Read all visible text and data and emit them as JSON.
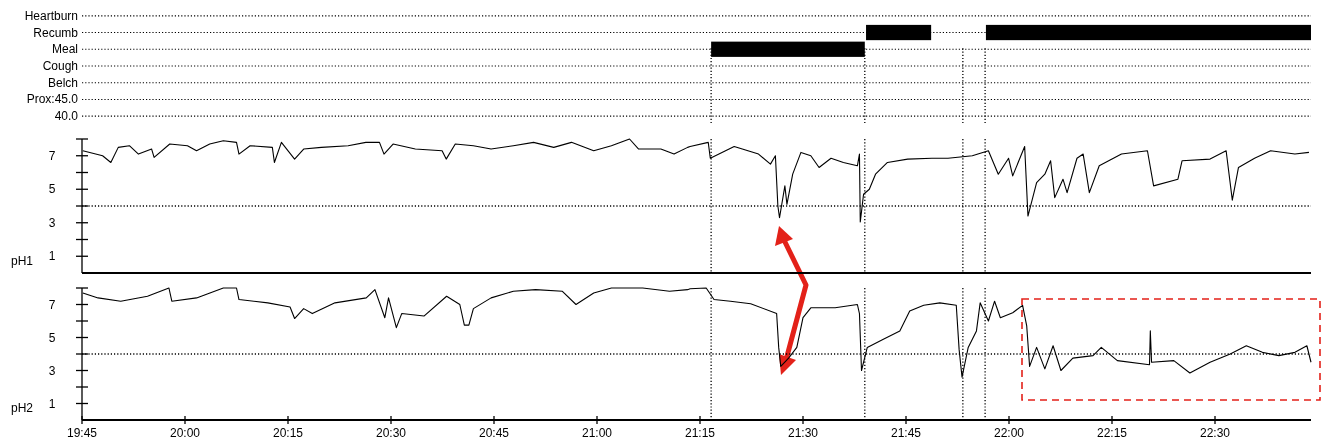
{
  "chart_data": [
    {
      "type": "bar",
      "orientation": "horizontal",
      "categories": [
        "Heartburn",
        "Recumb",
        "Meal",
        "Cough",
        "Belch",
        "Prox:45.0",
        "40.0"
      ],
      "xlim": [
        19.75,
        22.733
      ],
      "tick_labels": "y",
      "grid": "y",
      "series": [
        {
          "color": "#000000",
          "base": [
            null,
            21.653,
            21.277,
            null,
            null,
            null,
            null
          ],
          "values": [
            null,
            0.158,
            0.373,
            null,
            null,
            null,
            null
          ]
        },
        {
          "color": "#000000",
          "base": [
            null,
            21.944,
            null,
            null,
            null,
            null,
            null
          ],
          "values": [
            null,
            0.789,
            null,
            null,
            null,
            null,
            null
          ]
        }
      ],
      "ref_lines": [
        {
          "axis": "x",
          "value": 21.277,
          "line_style": "dotted"
        },
        {
          "axis": "x",
          "value": 21.65,
          "line_style": "dotted"
        },
        {
          "axis": "x",
          "value": 21.888,
          "line_style": "dotted"
        },
        {
          "axis": "x",
          "value": 21.942,
          "line_style": "dotted"
        }
      ]
    },
    {
      "type": "line",
      "ylabel": "pH1",
      "xlim": [
        19.75,
        22.733
      ],
      "ylim": [
        0,
        8
      ],
      "tick_labels": "y",
      "yticks": [
        {
          "value": 8,
          "label": null
        },
        7,
        {
          "value": 6,
          "label": null
        },
        5,
        {
          "value": 4,
          "label": null
        },
        3,
        {
          "value": 2,
          "label": null
        },
        1
      ],
      "series": [
        {
          "color": "#000000",
          "x": [
            19.752,
            19.8,
            19.82,
            19.838,
            19.865,
            19.887,
            19.919,
            19.925,
            19.963,
            20.006,
            20.028,
            20.06,
            20.093,
            20.125,
            20.131,
            20.158,
            20.212,
            20.217,
            20.234,
            20.266,
            20.288,
            20.331,
            20.396,
            20.439,
            20.472,
            20.483,
            20.505,
            20.559,
            20.624,
            20.634,
            20.656,
            20.7,
            20.743,
            20.797,
            20.846,
            20.895,
            20.938,
            20.992,
            21.035,
            21.079,
            21.101,
            21.155,
            21.187,
            21.22,
            21.226,
            21.27,
            21.275,
            21.333,
            21.392,
            21.421,
            21.433,
            21.439,
            21.443,
            21.456,
            21.461,
            21.475,
            21.495,
            21.519,
            21.539,
            21.568,
            21.598,
            21.632,
            21.637,
            21.639,
            21.647,
            21.661,
            21.676,
            21.705,
            21.754,
            21.813,
            21.852,
            21.911,
            21.95,
            21.974,
            21.999,
            22.009,
            22.038,
            22.046,
            22.067,
            22.087,
            22.101,
            22.111,
            22.131,
            22.141,
            22.165,
            22.18,
            22.195,
            22.219,
            22.273,
            22.336,
            22.351,
            22.41,
            22.42,
            22.488,
            22.527,
            22.542,
            22.557,
            22.596,
            22.635,
            22.694,
            22.728
          ],
          "values": [
            7.3,
            7.0,
            6.6,
            7.5,
            7.6,
            7.1,
            7.4,
            6.9,
            7.7,
            7.6,
            7.3,
            7.7,
            7.9,
            7.8,
            7.1,
            7.6,
            7.5,
            6.6,
            7.8,
            6.8,
            7.4,
            7.5,
            7.6,
            7.8,
            7.8,
            7.1,
            7.7,
            7.4,
            7.3,
            6.8,
            7.7,
            7.6,
            7.4,
            7.6,
            7.8,
            7.5,
            7.8,
            7.3,
            7.6,
            8.0,
            7.4,
            7.4,
            7.1,
            7.5,
            7.55,
            7.8,
            6.85,
            7.55,
            7.1,
            6.5,
            7.0,
            4.0,
            3.3,
            5.2,
            4.1,
            5.9,
            7.2,
            7.0,
            6.3,
            6.85,
            6.6,
            6.4,
            7.1,
            3.05,
            4.7,
            5.0,
            5.9,
            6.6,
            6.8,
            6.85,
            6.85,
            7.0,
            7.3,
            5.9,
            6.85,
            5.8,
            7.55,
            3.4,
            5.4,
            5.9,
            6.7,
            4.5,
            5.6,
            4.8,
            6.85,
            7.1,
            4.8,
            6.4,
            7.1,
            7.3,
            5.2,
            5.6,
            6.7,
            6.8,
            7.3,
            4.35,
            6.3,
            6.85,
            7.3,
            7.1,
            7.2
          ]
        }
      ],
      "ref_lines": [
        {
          "axis": "y",
          "value": 4,
          "line_style": "dotted"
        },
        {
          "axis": "x",
          "value": 21.277,
          "line_style": "dotted"
        },
        {
          "axis": "x",
          "value": 21.65,
          "line_style": "dotted"
        },
        {
          "axis": "x",
          "value": 21.888,
          "line_style": "dotted"
        },
        {
          "axis": "x",
          "value": 21.942,
          "line_style": "dotted"
        }
      ]
    },
    {
      "type": "line",
      "ylabel": "pH2",
      "xlim": [
        19.75,
        22.733
      ],
      "ylim": [
        0,
        8
      ],
      "xticks": [
        {
          "value": 19.75,
          "label": "19:45"
        },
        {
          "value": 20,
          "label": "20:00"
        },
        {
          "value": 20.25,
          "label": "20:15"
        },
        {
          "value": 20.5,
          "label": "20:30"
        },
        {
          "value": 20.75,
          "label": "20:45"
        },
        {
          "value": 21,
          "label": "21:00"
        },
        {
          "value": 21.25,
          "label": "21:15"
        },
        {
          "value": 21.5,
          "label": "21:30"
        },
        {
          "value": 21.75,
          "label": "21:45"
        },
        {
          "value": 22,
          "label": "22:00"
        },
        {
          "value": 22.25,
          "label": "22:15"
        },
        {
          "value": 22.5,
          "label": "22:30"
        }
      ],
      "yticks": [
        {
          "value": 8,
          "label": null
        },
        7,
        {
          "value": 6,
          "label": null
        },
        5,
        {
          "value": 4,
          "label": null
        },
        3,
        {
          "value": 2,
          "label": null
        },
        1
      ],
      "series": [
        {
          "color": "#000000",
          "x": [
            19.752,
            19.789,
            19.844,
            19.909,
            19.961,
            19.968,
            20.028,
            20.093,
            20.125,
            20.131,
            20.201,
            20.255,
            20.266,
            20.288,
            20.309,
            20.364,
            20.44,
            20.461,
            20.485,
            20.494,
            20.513,
            20.526,
            20.58,
            20.635,
            20.667,
            20.678,
            20.689,
            20.7,
            20.743,
            20.797,
            20.851,
            20.916,
            20.949,
            20.992,
            21.035,
            21.111,
            21.176,
            21.22,
            21.226,
            21.265,
            21.284,
            21.324,
            21.373,
            21.436,
            21.441,
            21.446,
            21.465,
            21.485,
            21.5,
            21.519,
            21.578,
            21.632,
            21.637,
            21.642,
            21.656,
            21.695,
            21.735,
            21.759,
            21.793,
            21.832,
            21.872,
            21.879,
            21.886,
            21.901,
            21.921,
            21.93,
            21.95,
            21.965,
            21.979,
            22.009,
            22.033,
            22.043,
            22.05,
            22.067,
            22.087,
            22.107,
            22.126,
            22.155,
            22.204,
            22.224,
            22.263,
            22.341,
            22.343,
            22.346,
            22.4,
            22.439,
            22.488,
            22.537,
            22.576,
            22.615,
            22.655,
            22.694,
            22.723,
            22.733
          ],
          "values": [
            7.7,
            7.4,
            7.2,
            7.5,
            8.0,
            7.2,
            7.4,
            8.0,
            8.0,
            7.3,
            7.1,
            6.85,
            6.15,
            6.75,
            6.45,
            7.1,
            7.4,
            7.9,
            6.2,
            7.4,
            5.6,
            6.45,
            6.3,
            7.5,
            7.0,
            5.75,
            5.75,
            6.75,
            7.4,
            7.8,
            7.9,
            7.8,
            7.0,
            7.7,
            8.0,
            8.0,
            7.8,
            7.9,
            7.95,
            8.0,
            7.3,
            7.2,
            7.05,
            6.45,
            4.4,
            3.25,
            3.75,
            4.4,
            6.2,
            6.8,
            6.8,
            7.0,
            6.45,
            3.0,
            4.4,
            4.9,
            5.4,
            6.6,
            6.95,
            7.1,
            6.95,
            4.25,
            2.6,
            4.4,
            5.4,
            7.1,
            6.0,
            7.2,
            6.2,
            6.5,
            6.95,
            5.7,
            3.25,
            4.4,
            3.1,
            4.5,
            3.0,
            3.75,
            3.9,
            4.4,
            3.6,
            3.35,
            5.4,
            3.5,
            3.6,
            2.85,
            3.5,
            4.0,
            4.5,
            4.1,
            3.9,
            4.1,
            4.5,
            3.5
          ]
        }
      ],
      "ref_lines": [
        {
          "axis": "y",
          "value": 4,
          "line_style": "dotted"
        },
        {
          "axis": "x",
          "value": 21.277,
          "line_style": "dotted"
        },
        {
          "axis": "x",
          "value": 21.65,
          "line_style": "dotted"
        },
        {
          "axis": "x",
          "value": 21.888,
          "line_style": "dotted"
        },
        {
          "axis": "x",
          "value": 21.942,
          "line_style": "dotted"
        }
      ]
    }
  ]
}
